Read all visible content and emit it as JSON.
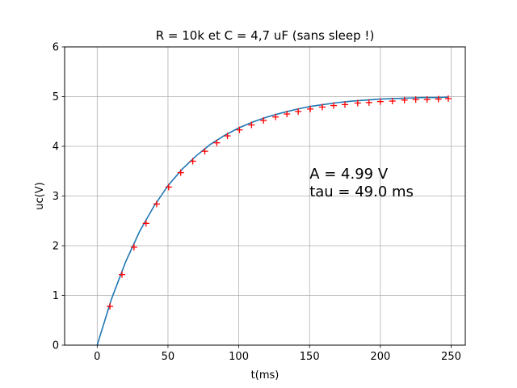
{
  "chart_data": {
    "type": "line",
    "title": "R = 10k et C = 4,7 uF (sans sleep !)",
    "xlabel": "t(ms)",
    "ylabel": "uc(V)",
    "xlim": [
      -23,
      260
    ],
    "ylim": [
      0,
      6
    ],
    "x_ticks": [
      0,
      50,
      100,
      150,
      200,
      250
    ],
    "y_ticks": [
      0,
      1,
      2,
      3,
      4,
      5,
      6
    ],
    "grid": true,
    "annotations": [
      "A = 4.99 V",
      "tau = 49.0 ms"
    ],
    "fit": {
      "A": 4.99,
      "tau": 49.0,
      "t_start": 0,
      "t_end": 248
    },
    "series": [
      {
        "kind": "fit-line",
        "color": "#1f77b4",
        "x": [
          0,
          10,
          20,
          30,
          40,
          50,
          60,
          70,
          80,
          90,
          100,
          110,
          120,
          130,
          140,
          150,
          160,
          170,
          180,
          190,
          200,
          210,
          220,
          230,
          240,
          248
        ],
        "y": [
          0,
          0.92,
          1.67,
          2.29,
          2.79,
          3.21,
          3.54,
          3.81,
          4.04,
          4.22,
          4.37,
          4.49,
          4.59,
          4.67,
          4.74,
          4.8,
          4.84,
          4.88,
          4.91,
          4.93,
          4.95,
          4.96,
          4.97,
          4.98,
          4.98,
          4.99
        ]
      },
      {
        "kind": "measurements",
        "color": "#ff0000",
        "marker": "plus",
        "x": [
          9,
          17.5,
          26,
          34.5,
          42,
          50.5,
          59,
          67.5,
          76,
          84.5,
          92,
          100.5,
          109,
          117.5,
          126,
          134,
          142,
          150.5,
          159,
          167,
          175,
          184,
          192,
          200,
          208.5,
          217,
          225,
          233,
          241,
          248
        ],
        "y": [
          0.78,
          1.42,
          1.97,
          2.45,
          2.84,
          3.18,
          3.47,
          3.7,
          3.9,
          4.07,
          4.21,
          4.33,
          4.43,
          4.52,
          4.59,
          4.65,
          4.7,
          4.75,
          4.79,
          4.82,
          4.84,
          4.87,
          4.88,
          4.9,
          4.91,
          4.93,
          4.94,
          4.94,
          4.95,
          4.96
        ]
      }
    ]
  }
}
